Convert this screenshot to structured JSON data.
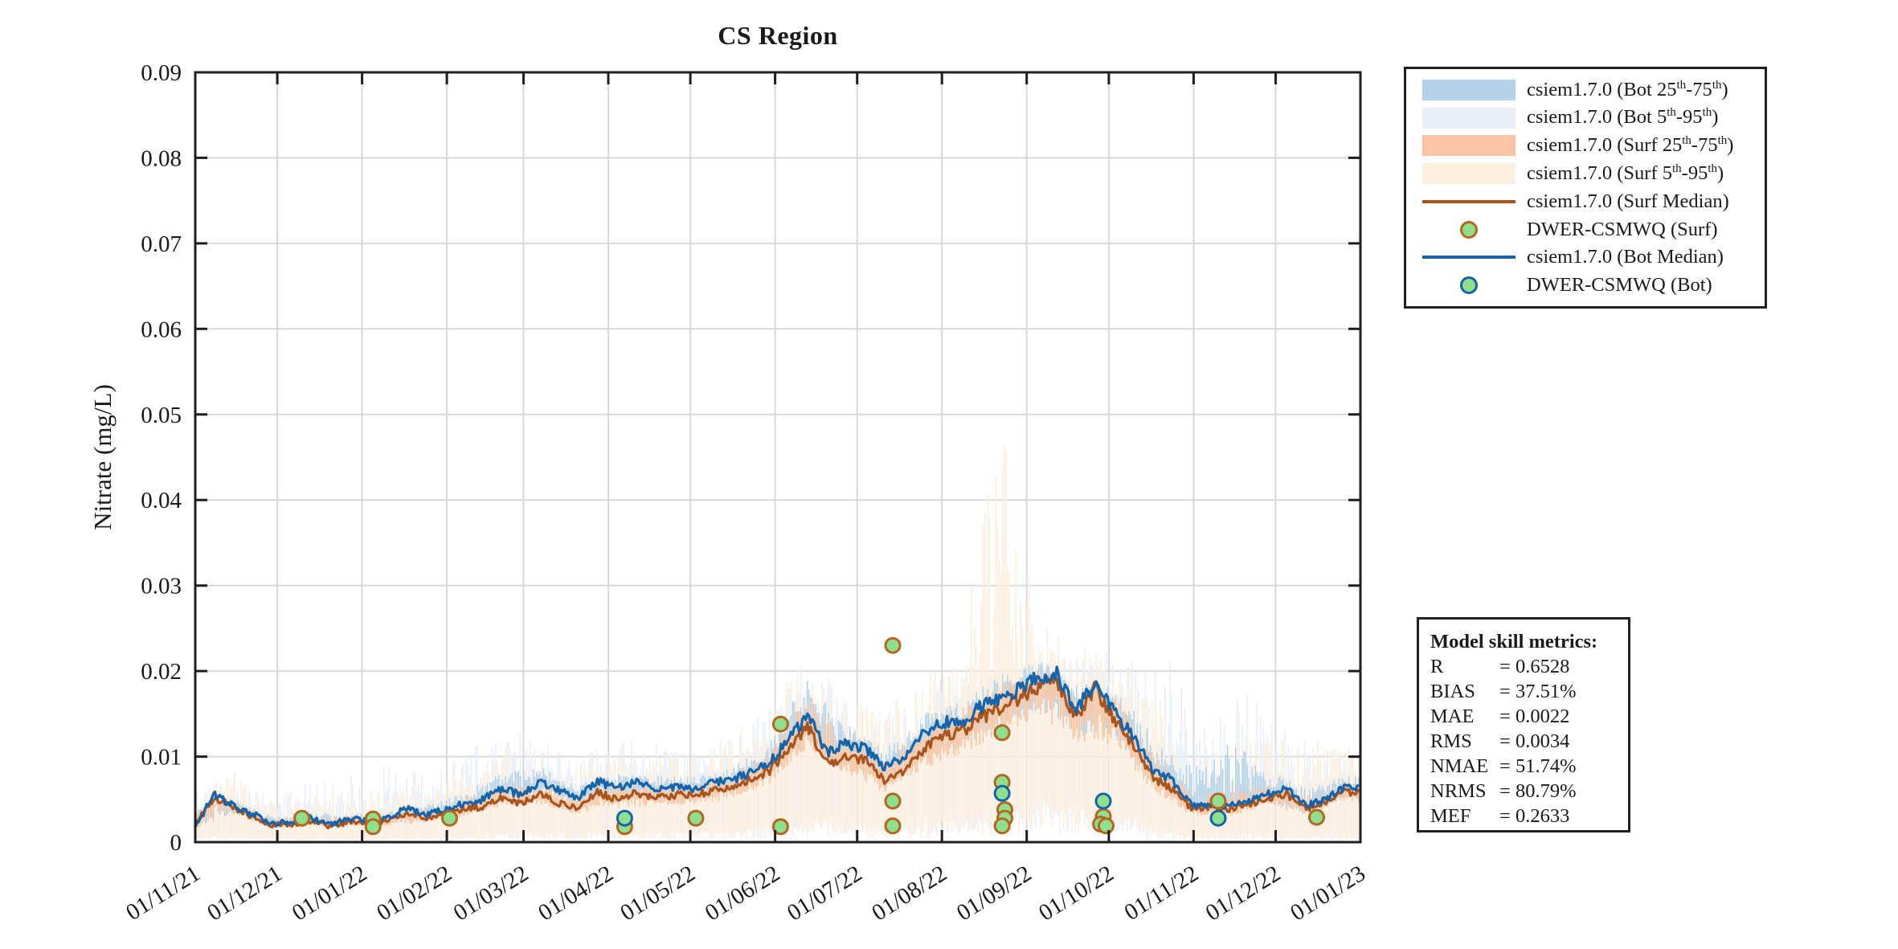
{
  "chart_data": {
    "type": "line",
    "title": "CS Region",
    "ylabel": "Nitrate (mg/L)",
    "xlabel": "",
    "ylim": [
      0,
      0.09
    ],
    "grid": true,
    "legend_position": "outside-right",
    "x_span_days": 426,
    "x_tick_days": [
      0,
      30,
      61,
      92,
      120,
      151,
      181,
      212,
      242,
      273,
      304,
      334,
      365,
      395,
      426
    ],
    "x_tick_labels": [
      "01/11/21",
      "01/12/21",
      "01/01/22",
      "01/02/22",
      "01/03/22",
      "01/04/22",
      "01/05/22",
      "01/06/22",
      "01/07/22",
      "01/08/22",
      "01/09/22",
      "01/10/22",
      "01/11/22",
      "01/12/22",
      "01/01/23"
    ],
    "y_tick_values": [
      0,
      0.01,
      0.02,
      0.03,
      0.04,
      0.05,
      0.06,
      0.07,
      0.08,
      0.09
    ],
    "y_tick_labels": [
      "0",
      "0.01",
      "0.02",
      "0.03",
      "0.04",
      "0.05",
      "0.06",
      "0.07",
      "0.08",
      "0.09"
    ],
    "series": {
      "week_days": [
        0,
        7,
        14,
        21,
        28,
        35,
        42,
        49,
        56,
        63,
        70,
        77,
        84,
        91,
        98,
        105,
        112,
        119,
        126,
        133,
        140,
        147,
        154,
        161,
        168,
        175,
        182,
        189,
        196,
        203,
        210,
        217,
        224,
        231,
        238,
        245,
        252,
        259,
        266,
        273,
        280,
        287,
        294,
        301,
        308,
        315,
        322,
        329,
        336,
        343,
        350,
        357,
        364,
        371,
        378,
        385,
        392,
        399,
        406,
        413,
        420,
        426
      ],
      "bot_median": [
        0.002,
        0.0055,
        0.0043,
        0.0033,
        0.0022,
        0.0024,
        0.0028,
        0.002,
        0.0028,
        0.0024,
        0.0027,
        0.004,
        0.0032,
        0.0038,
        0.0045,
        0.005,
        0.0063,
        0.0055,
        0.007,
        0.006,
        0.0052,
        0.0072,
        0.0062,
        0.0072,
        0.0062,
        0.0065,
        0.0062,
        0.0069,
        0.0072,
        0.0082,
        0.0092,
        0.012,
        0.0148,
        0.0105,
        0.0115,
        0.011,
        0.0088,
        0.01,
        0.0125,
        0.014,
        0.014,
        0.0158,
        0.0166,
        0.0178,
        0.0192,
        0.0197,
        0.0155,
        0.0186,
        0.0151,
        0.0125,
        0.0085,
        0.0073,
        0.0044,
        0.0044,
        0.0042,
        0.0048,
        0.0056,
        0.0062,
        0.0043,
        0.005,
        0.0064,
        0.0063
      ],
      "surf_median": [
        0.002,
        0.0053,
        0.004,
        0.003,
        0.002,
        0.0021,
        0.0024,
        0.0018,
        0.0024,
        0.0021,
        0.0024,
        0.0034,
        0.0028,
        0.0033,
        0.0038,
        0.0042,
        0.0052,
        0.0046,
        0.0055,
        0.0046,
        0.004,
        0.0058,
        0.005,
        0.0058,
        0.0052,
        0.0055,
        0.0054,
        0.006,
        0.0064,
        0.0073,
        0.0084,
        0.0108,
        0.0135,
        0.0092,
        0.01,
        0.0095,
        0.0072,
        0.0082,
        0.0108,
        0.0125,
        0.0128,
        0.0145,
        0.0155,
        0.0168,
        0.0182,
        0.0188,
        0.0146,
        0.018,
        0.0143,
        0.0115,
        0.0075,
        0.0063,
        0.004,
        0.004,
        0.0038,
        0.0044,
        0.0052,
        0.0056,
        0.0039,
        0.0046,
        0.0059,
        0.0058
      ],
      "env_days": [
        0,
        14,
        28,
        42,
        56,
        70,
        84,
        98,
        112,
        126,
        140,
        154,
        168,
        182,
        196,
        210,
        224,
        238,
        252,
        266,
        280,
        294,
        308,
        322,
        336,
        350,
        364,
        378,
        392,
        406,
        420,
        426
      ],
      "bot_p25": [
        0.0016,
        0.0034,
        0.0018,
        0.0022,
        0.0022,
        0.0021,
        0.0026,
        0.0036,
        0.005,
        0.0056,
        0.0042,
        0.005,
        0.005,
        0.005,
        0.0058,
        0.0074,
        0.0118,
        0.0092,
        0.007,
        0.01,
        0.0112,
        0.0133,
        0.0154,
        0.0124,
        0.0121,
        0.0068,
        0.0035,
        0.0034,
        0.0045,
        0.0034,
        0.0051,
        0.005
      ],
      "bot_p75": [
        0.004,
        0.0052,
        0.003,
        0.0036,
        0.0036,
        0.0036,
        0.0044,
        0.0058,
        0.0085,
        0.0088,
        0.0068,
        0.008,
        0.0078,
        0.0076,
        0.0088,
        0.0118,
        0.0205,
        0.0138,
        0.011,
        0.015,
        0.0165,
        0.0195,
        0.0215,
        0.0185,
        0.0185,
        0.0125,
        0.009,
        0.012,
        0.0085,
        0.0065,
        0.008,
        0.0078
      ],
      "bot_p5": [
        0.0008,
        0.0012,
        0.0008,
        0.0008,
        0.0008,
        0.0008,
        0.001,
        0.0012,
        0.0015,
        0.0018,
        0.0015,
        0.0018,
        0.0018,
        0.0018,
        0.002,
        0.0025,
        0.004,
        0.0035,
        0.003,
        0.004,
        0.0045,
        0.0055,
        0.0065,
        0.0055,
        0.005,
        0.0028,
        0.0012,
        0.0012,
        0.0015,
        0.0012,
        0.0015,
        0.0015
      ],
      "bot_p95": [
        0.006,
        0.0085,
        0.0052,
        0.007,
        0.0078,
        0.0095,
        0.008,
        0.0105,
        0.0135,
        0.012,
        0.011,
        0.0125,
        0.0115,
        0.0105,
        0.0125,
        0.016,
        0.0225,
        0.0165,
        0.015,
        0.0185,
        0.0195,
        0.023,
        0.0235,
        0.022,
        0.023,
        0.026,
        0.016,
        0.021,
        0.015,
        0.012,
        0.0115,
        0.011
      ],
      "surf_p25": [
        0.0016,
        0.0032,
        0.0016,
        0.0019,
        0.0019,
        0.0019,
        0.0022,
        0.003,
        0.0042,
        0.0044,
        0.0032,
        0.004,
        0.0042,
        0.0043,
        0.0051,
        0.0067,
        0.0108,
        0.008,
        0.0058,
        0.0086,
        0.0102,
        0.0124,
        0.0146,
        0.0117,
        0.0114,
        0.006,
        0.0032,
        0.003,
        0.0042,
        0.0031,
        0.0047,
        0.0046
      ],
      "surf_p75": [
        0.0038,
        0.0048,
        0.0028,
        0.0032,
        0.0032,
        0.0032,
        0.0038,
        0.005,
        0.0068,
        0.007,
        0.0055,
        0.0068,
        0.0066,
        0.0068,
        0.008,
        0.0105,
        0.0175,
        0.0125,
        0.0095,
        0.0135,
        0.0155,
        0.0185,
        0.0205,
        0.0175,
        0.0175,
        0.0105,
        0.006,
        0.0062,
        0.0068,
        0.0055,
        0.0072,
        0.007
      ],
      "surf_p5": [
        0.0006,
        0.0008,
        0.0005,
        0.0005,
        0.0005,
        0.0005,
        0.0006,
        0.0008,
        0.001,
        0.0012,
        0.001,
        0.0012,
        0.0012,
        0.0012,
        0.0015,
        0.0018,
        0.003,
        0.0025,
        0.0018,
        0.0025,
        0.003,
        0.004,
        0.005,
        0.004,
        0.0038,
        0.002,
        0.0008,
        0.0008,
        0.001,
        0.0008,
        0.001,
        0.001
      ],
      "surf_p95": [
        0.006,
        0.008,
        0.0048,
        0.0055,
        0.006,
        0.0065,
        0.0068,
        0.009,
        0.011,
        0.0105,
        0.0095,
        0.011,
        0.0105,
        0.011,
        0.013,
        0.016,
        0.0215,
        0.0165,
        0.016,
        0.0195,
        0.023,
        0.05,
        0.026,
        0.023,
        0.0225,
        0.018,
        0.011,
        0.012,
        0.013,
        0.011,
        0.012,
        0.0115
      ]
    },
    "observations": {
      "surf": [
        {
          "day": 39,
          "value": 0.0028
        },
        {
          "day": 65,
          "value": 0.0027
        },
        {
          "day": 65,
          "value": 0.0018
        },
        {
          "day": 93,
          "value": 0.0028
        },
        {
          "day": 157,
          "value": 0.0018
        },
        {
          "day": 183,
          "value": 0.0028
        },
        {
          "day": 214,
          "value": 0.0138
        },
        {
          "day": 214,
          "value": 0.0018
        },
        {
          "day": 255,
          "value": 0.023
        },
        {
          "day": 255,
          "value": 0.0048
        },
        {
          "day": 255,
          "value": 0.0019
        },
        {
          "day": 295,
          "value": 0.0128
        },
        {
          "day": 295,
          "value": 0.007
        },
        {
          "day": 296,
          "value": 0.0038
        },
        {
          "day": 296,
          "value": 0.0028
        },
        {
          "day": 295,
          "value": 0.0019
        },
        {
          "day": 332,
          "value": 0.003
        },
        {
          "day": 331,
          "value": 0.0021
        },
        {
          "day": 333,
          "value": 0.0019
        },
        {
          "day": 374,
          "value": 0.0048
        },
        {
          "day": 410,
          "value": 0.0029
        }
      ],
      "bot": [
        {
          "day": 157,
          "value": 0.0028
        },
        {
          "day": 295,
          "value": 0.0057
        },
        {
          "day": 332,
          "value": 0.0048
        },
        {
          "day": 374,
          "value": 0.0028
        }
      ]
    }
  },
  "legend": {
    "items": [
      {
        "swatch": "band",
        "color": "#b3d4e8",
        "label": "csiem1.7.0 (Bot 25^th^-75^th^)"
      },
      {
        "swatch": "band",
        "color": "#e9eff8",
        "label": "csiem1.7.0 (Bot 5^th^-95^th^)"
      },
      {
        "swatch": "band",
        "color": "#fbc5a4",
        "label": "csiem1.7.0 (Surf 25^th^-75^th^)"
      },
      {
        "swatch": "band",
        "color": "#fdf0e0",
        "label": "csiem1.7.0 (Surf 5^th^-95^th^)"
      },
      {
        "swatch": "line",
        "color": "#a8541c",
        "label": "csiem1.7.0 (Surf Median)"
      },
      {
        "swatch": "marker",
        "color": "#b4661f",
        "label": "DWER-CSMWQ (Surf)"
      },
      {
        "swatch": "line",
        "color": "#1563a8",
        "label": "csiem1.7.0 (Bot Median)"
      },
      {
        "swatch": "marker",
        "color": "#1563a8",
        "label": "DWER-CSMWQ (Bot)"
      }
    ]
  },
  "metrics": {
    "title": "Model skill metrics:",
    "lines": [
      {
        "name": "R",
        "value": "= 0.6528"
      },
      {
        "name": "BIAS",
        "value": "= 37.51%"
      },
      {
        "name": "MAE",
        "value": "= 0.0022"
      },
      {
        "name": "RMS",
        "value": "= 0.0034"
      },
      {
        "name": "NMAE",
        "value": "= 51.74%"
      },
      {
        "name": "NRMS",
        "value": "= 80.79%"
      },
      {
        "name": "MEF",
        "value": "= 0.2633"
      }
    ]
  },
  "colors": {
    "bot_band_inner": "#aecfe6",
    "bot_band_outer": "#e6eef7",
    "surf_band_inner": "#f9c09a",
    "surf_band_outer": "#fceddc",
    "bot_median": "#1563a8",
    "surf_median": "#a8541c",
    "marker_fill": "#8fe08d",
    "marker_edge_surf": "#b4661f",
    "marker_edge_bot": "#1563a8",
    "grid": "#d9d9d9",
    "axis": "#1f1f1f",
    "text": "#1a1a1a"
  }
}
